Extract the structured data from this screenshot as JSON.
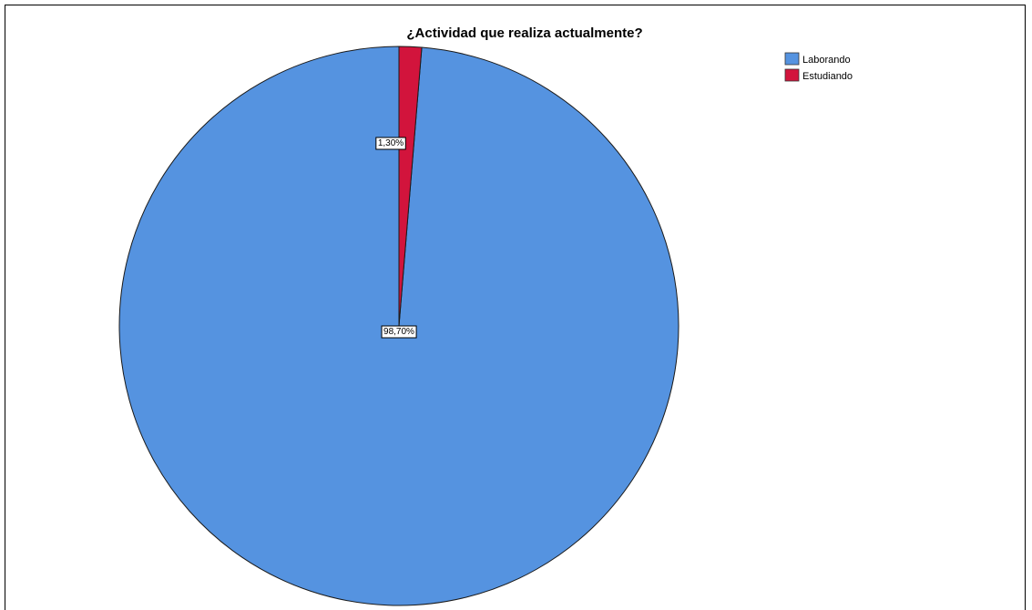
{
  "chart_data": {
    "type": "pie",
    "title": "¿Actividad que realiza actualmente?",
    "categories": [
      "Laborando",
      "Estudiando"
    ],
    "values": [
      98.7,
      1.3
    ],
    "data_labels": [
      "98,70%",
      "1,30%"
    ],
    "colors": [
      "#5593e0",
      "#d2143c"
    ],
    "legend_position": "top-right",
    "start": "top",
    "direction": "counterclockwise-small-slice-left-of-top"
  }
}
